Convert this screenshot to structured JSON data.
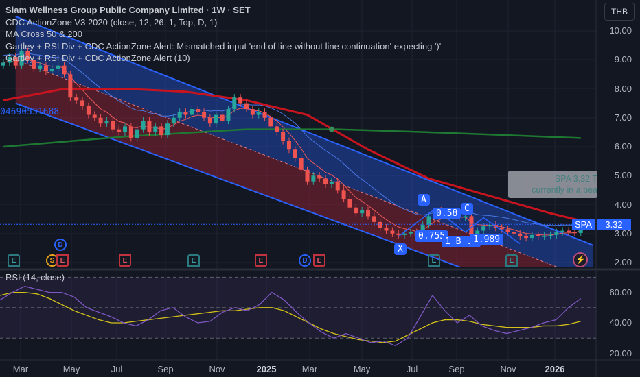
{
  "legend": {
    "title": "Siam Wellness Group Public Company Limited · 1W · SET",
    "lines": [
      "CDC ActionZone V3 2020 (close, 12, 26, 1, Top, D, 1)",
      "MA Cross 50 & 200",
      "Gartley + RSI Div + CDC ActionZone Alert: Mismatched input 'end of line without line continuation' expecting ')'",
      "Gartley + RSI Div + CDC ActionZone Alert (10)"
    ]
  },
  "currency": "THB",
  "fib_number": "04690531688",
  "price_axis": [
    "10.00",
    "9.00",
    "8.00",
    "7.00",
    "6.00",
    "5.00",
    "4.00",
    "3.00",
    "2.00"
  ],
  "rsi_axis": [
    "60.00",
    "40.00",
    "20.00"
  ],
  "time_axis": [
    "Mar",
    "May",
    "Jul",
    "Sep",
    "Nov",
    "2025",
    "Mar",
    "May",
    "Jul",
    "Sep",
    "Nov",
    "2026"
  ],
  "rsi_label": "RSI (14, close)",
  "symbol_tag": "SPA",
  "last_price": "3.32",
  "tooltip": {
    "line1": "SPA 3.32 T",
    "line2": "currently in a bea"
  },
  "pattern": {
    "X": "X",
    "A": "A",
    "B": "1 B .8",
    "C": "C",
    "D": "D",
    "xab": "0.755",
    "abc": "0.58",
    "bcd": "1.989"
  },
  "signals": {
    "E": "E",
    "D": "D",
    "S": "S"
  },
  "colors": {
    "bg": "#131722",
    "up": "#26a69a",
    "down": "#ef5350",
    "channel": "#2962ff",
    "ma50": "#c8141e",
    "ma200": "#1e7a32",
    "rsi": "#7e57c2",
    "rsi_ma": "#d4c21a"
  },
  "chart_data": {
    "type": "candlestick",
    "ylim": [
      2,
      10
    ],
    "closes": [
      8.9,
      9.1,
      8.8,
      9.3,
      9.0,
      8.7,
      8.8,
      8.6,
      8.7,
      8.8,
      8.5,
      7.7,
      7.6,
      7.4,
      7.1,
      7.0,
      6.8,
      6.9,
      6.6,
      6.5,
      6.7,
      6.3,
      6.6,
      6.9,
      6.5,
      6.7,
      6.4,
      6.8,
      7.0,
      7.2,
      7.1,
      7.3,
      7.2,
      7.0,
      6.8,
      7.1,
      6.9,
      7.3,
      7.7,
      7.5,
      7.3,
      7.1,
      7.2,
      7.0,
      6.7,
      6.5,
      6.2,
      5.9,
      5.6,
      5.2,
      4.8,
      5.0,
      4.9,
      4.7,
      4.8,
      4.5,
      4.2,
      3.9,
      3.7,
      3.8,
      3.6,
      3.4,
      3.2,
      3.1,
      3.0,
      2.95,
      3.0,
      3.05,
      2.9,
      3.3,
      3.6,
      3.8,
      3.7,
      3.6,
      3.65,
      3.55,
      3.6,
      2.95,
      3.1,
      3.25,
      3.3,
      3.2,
      3.15,
      3.05,
      3.0,
      2.9,
      2.85,
      2.95,
      2.9,
      2.92,
      2.95,
      3.05,
      3.1,
      3.05,
      3.02,
      3.32
    ],
    "ma50": [
      [
        0,
        7.6
      ],
      [
        10,
        8.0
      ],
      [
        20,
        8.0
      ],
      [
        30,
        7.9
      ],
      [
        40,
        7.6
      ],
      [
        50,
        7.1
      ],
      [
        60,
        5.9
      ],
      [
        70,
        4.9
      ],
      [
        80,
        4.3
      ],
      [
        90,
        3.7
      ],
      [
        95,
        3.45
      ]
    ],
    "ma200": [
      [
        0,
        6.0
      ],
      [
        20,
        6.35
      ],
      [
        40,
        6.6
      ],
      [
        55,
        6.6
      ],
      [
        70,
        6.5
      ],
      [
        95,
        6.3
      ]
    ],
    "channel": {
      "upper": [
        [
          8,
          10.0
        ],
        [
          97,
          2.6
        ]
      ],
      "lower": [
        [
          2,
          7.5
        ],
        [
          75,
          1.85
        ]
      ]
    },
    "rsi": {
      "ylim": [
        15,
        70
      ],
      "values": [
        55,
        60,
        64,
        62,
        60,
        60,
        57,
        50,
        47,
        44,
        40,
        38,
        42,
        48,
        50,
        44,
        40,
        41,
        47,
        50,
        48,
        52,
        60,
        55,
        47,
        40,
        34,
        30,
        33,
        30,
        27,
        28,
        25,
        30,
        44,
        58,
        48,
        40,
        45,
        38,
        35,
        33,
        35,
        37,
        40,
        42,
        50,
        56
      ],
      "ma": [
        58,
        60,
        60,
        59,
        56,
        52,
        48,
        45,
        42,
        40,
        40,
        41,
        42,
        43,
        44,
        45,
        46,
        47,
        48,
        48,
        49,
        50,
        50,
        48,
        44,
        40,
        36,
        33,
        31,
        29,
        28,
        27,
        28,
        32,
        36,
        40,
        42,
        42,
        41,
        39,
        38,
        37,
        37,
        37,
        38,
        38,
        39,
        41
      ],
      "levels": [
        70,
        50,
        30
      ]
    }
  }
}
